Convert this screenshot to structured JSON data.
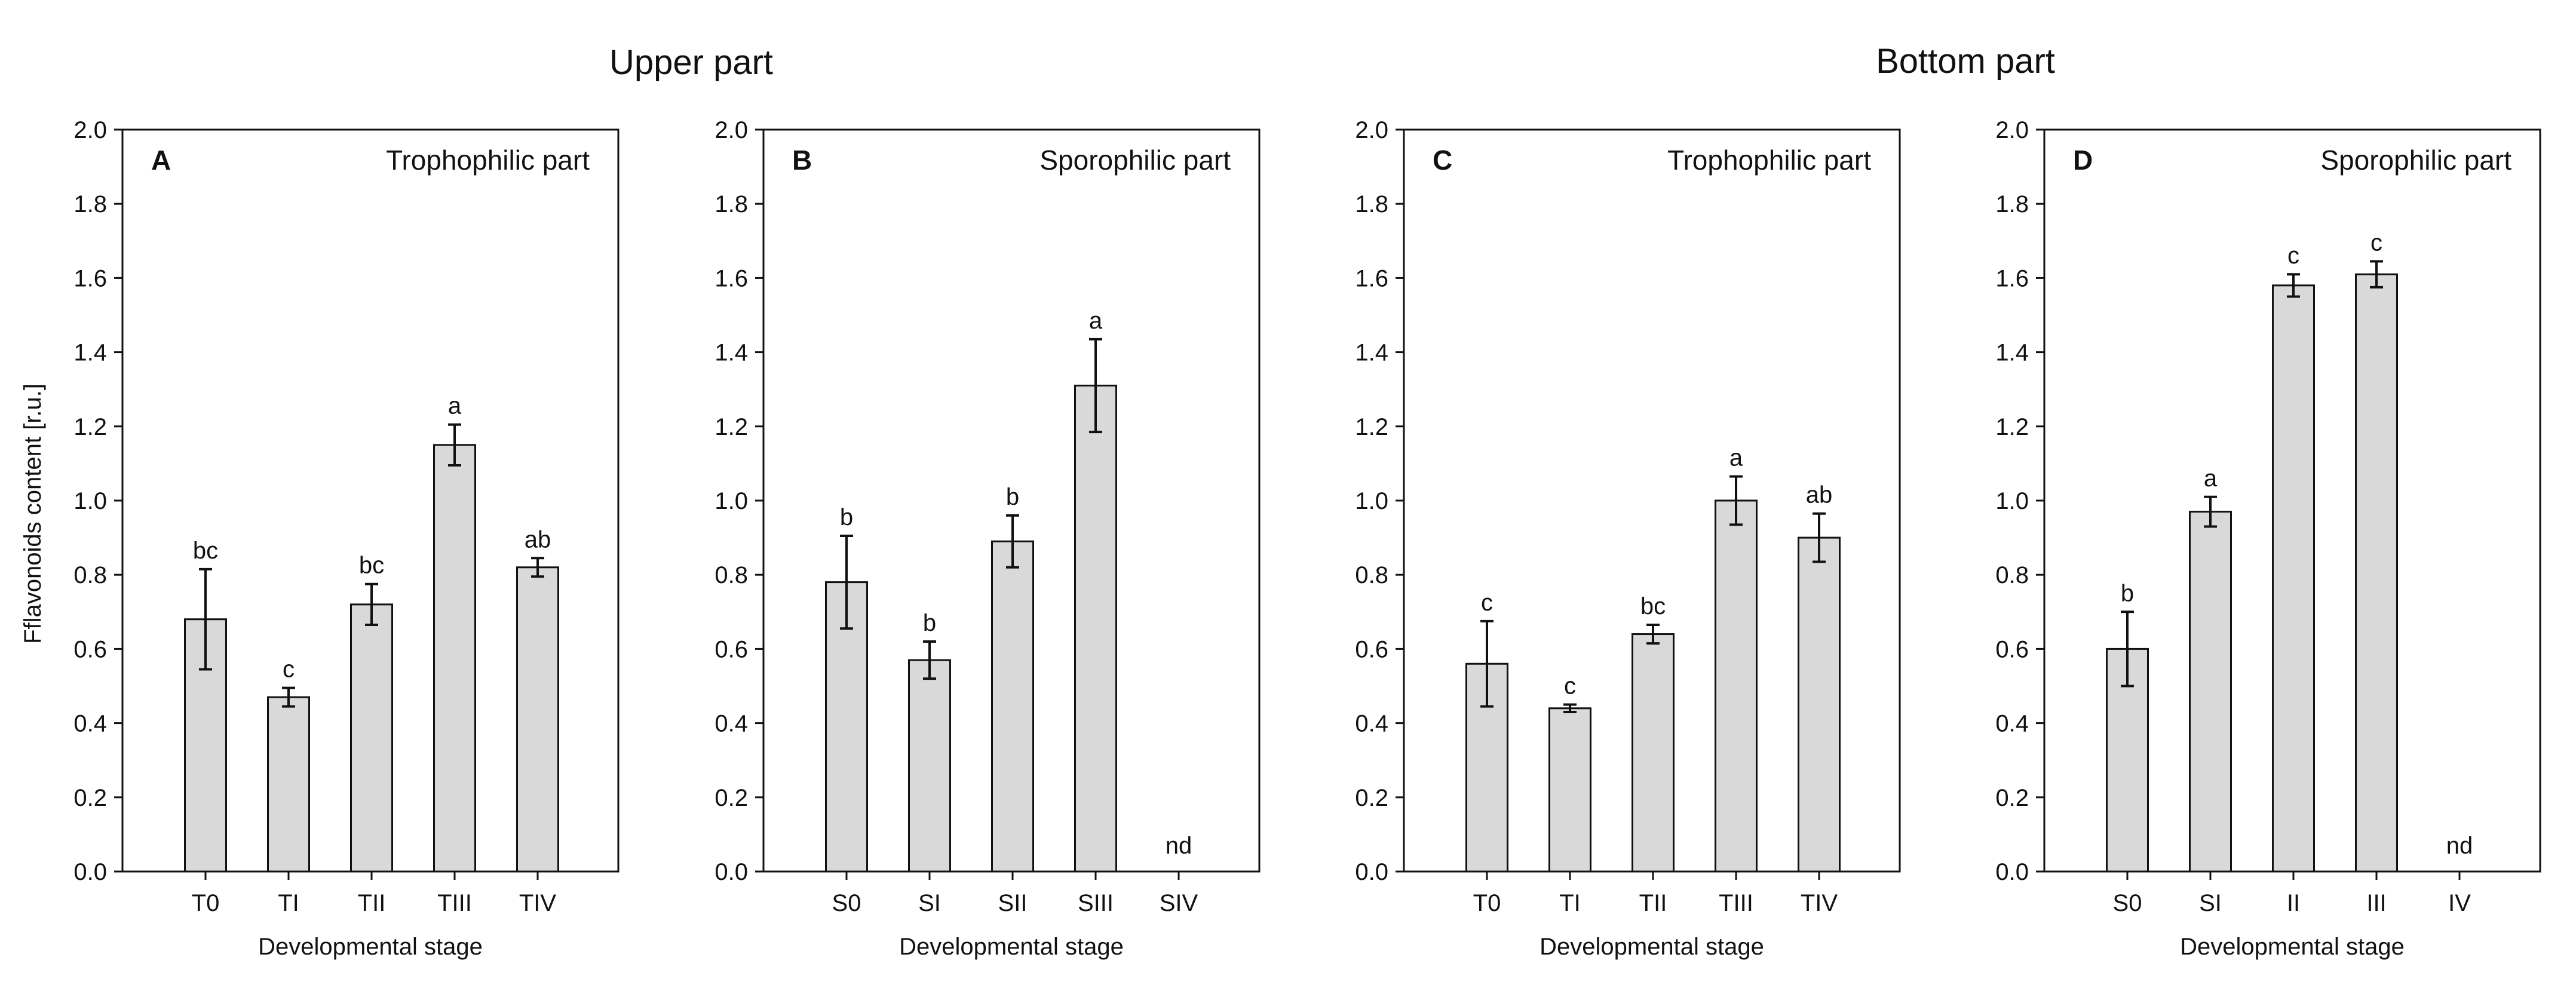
{
  "group_titles": {
    "upper": "Upper part",
    "bottom": "Bottom part"
  },
  "y_axis_label": "Fflavonoids content [r.u.]",
  "x_axis_label": "Developmental stage",
  "colors": {
    "bar_fill": "#d9d9d9",
    "bar_stroke": "#111111",
    "axis": "#111111"
  },
  "chart_data": [
    {
      "type": "bar",
      "panel": "A",
      "title": "Trophophilic part",
      "categories": [
        "T0",
        "TI",
        "TII",
        "TIII",
        "TIV"
      ],
      "values": [
        0.68,
        0.47,
        0.72,
        1.15,
        0.82
      ],
      "errors": [
        0.135,
        0.025,
        0.055,
        0.055,
        0.025
      ],
      "letters": [
        "bc",
        "c",
        "bc",
        "a",
        "ab"
      ],
      "ylim": [
        0.0,
        2.0
      ],
      "yticks": [
        "0.0",
        "0.2",
        "0.4",
        "0.6",
        "0.8",
        "1.0",
        "1.2",
        "1.4",
        "1.6",
        "1.8",
        "2.0"
      ],
      "grid": false
    },
    {
      "type": "bar",
      "panel": "B",
      "title": "Sporophilic part",
      "categories": [
        "S0",
        "SI",
        "SII",
        "SIII",
        "SIV"
      ],
      "values": [
        0.78,
        0.57,
        0.89,
        1.31,
        null
      ],
      "errors": [
        0.125,
        0.05,
        0.07,
        0.125,
        null
      ],
      "letters": [
        "b",
        "b",
        "b",
        "a",
        "nd"
      ],
      "ylim": [
        0.0,
        2.0
      ],
      "yticks": [
        "0.0",
        "0.2",
        "0.4",
        "0.6",
        "0.8",
        "1.0",
        "1.2",
        "1.4",
        "1.6",
        "1.8",
        "2.0"
      ],
      "grid": false
    },
    {
      "type": "bar",
      "panel": "C",
      "title": "Trophophilic part",
      "categories": [
        "T0",
        "TI",
        "TII",
        "TIII",
        "TIV"
      ],
      "values": [
        0.56,
        0.44,
        0.64,
        1.0,
        0.9
      ],
      "errors": [
        0.115,
        0.01,
        0.025,
        0.065,
        0.065
      ],
      "letters": [
        "c",
        "c",
        "bc",
        "a",
        "ab"
      ],
      "ylim": [
        0.0,
        2.0
      ],
      "yticks": [
        "0.0",
        "0.2",
        "0.4",
        "0.6",
        "0.8",
        "1.0",
        "1.2",
        "1.4",
        "1.6",
        "1.8",
        "2.0"
      ],
      "grid": false
    },
    {
      "type": "bar",
      "panel": "D",
      "title": "Sporophilic part",
      "categories": [
        "S0",
        "SI",
        "II",
        "III",
        "IV"
      ],
      "values": [
        0.6,
        0.97,
        1.58,
        1.61,
        null
      ],
      "errors": [
        0.1,
        0.04,
        0.03,
        0.035,
        null
      ],
      "letters": [
        "b",
        "a",
        "c",
        "c",
        "nd"
      ],
      "ylim": [
        0.0,
        2.0
      ],
      "yticks": [
        "0.0",
        "0.2",
        "0.4",
        "0.6",
        "0.8",
        "1.0",
        "1.2",
        "1.4",
        "1.6",
        "1.8",
        "2.0"
      ],
      "grid": false
    }
  ]
}
